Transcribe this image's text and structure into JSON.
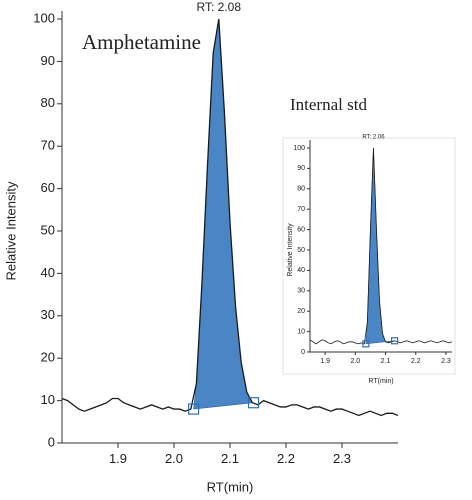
{
  "chart_data": [
    {
      "type": "line",
      "title": "Amphetamine",
      "annotation": "RT: 2.08",
      "annotation_x": 2.08,
      "x_label": "RT(min)",
      "y_label": "Relative Intensity",
      "x": [
        1.8,
        1.81,
        1.82,
        1.83,
        1.84,
        1.85,
        1.86,
        1.87,
        1.88,
        1.89,
        1.9,
        1.91,
        1.92,
        1.93,
        1.94,
        1.95,
        1.96,
        1.97,
        1.98,
        1.99,
        2.0,
        2.01,
        2.02,
        2.03,
        2.04,
        2.05,
        2.06,
        2.07,
        2.08,
        2.09,
        2.1,
        2.11,
        2.12,
        2.13,
        2.14,
        2.15,
        2.16,
        2.17,
        2.18,
        2.19,
        2.2,
        2.21,
        2.22,
        2.23,
        2.24,
        2.25,
        2.26,
        2.27,
        2.28,
        2.29,
        2.3,
        2.31,
        2.32,
        2.33,
        2.34,
        2.35,
        2.36,
        2.37,
        2.38,
        2.39,
        2.4
      ],
      "series": [
        {
          "color": "#1a1a1a",
          "fill": "#4a86c5",
          "values": [
            10.5,
            10,
            9,
            8,
            7.5,
            8,
            8.5,
            9,
            9.5,
            10.5,
            10.5,
            9.5,
            9,
            8.5,
            8,
            8.5,
            9,
            8.5,
            8,
            8.5,
            8,
            8,
            7.5,
            8,
            14,
            38,
            66,
            92,
            100,
            78,
            52,
            32,
            19,
            12,
            9.5,
            9,
            10,
            9.5,
            9,
            8.5,
            8.5,
            9,
            9,
            8.5,
            8,
            8.5,
            8.5,
            8,
            7.5,
            8,
            8,
            7.5,
            7,
            6.5,
            7,
            7.5,
            7,
            6.5,
            7,
            7,
            6.5
          ]
        }
      ],
      "peak_bounds": {
        "x": [
          2.035,
          2.142
        ],
        "y": [
          8,
          9.5
        ]
      },
      "xlim": [
        1.8,
        2.4
      ],
      "xticks": [
        1.9,
        {
          "value": 2.0,
          "label": "2.0"
        },
        2.1,
        2.2,
        2.3
      ],
      "ylim": [
        0,
        100
      ],
      "yticks": [
        0,
        10,
        20,
        30,
        40,
        50,
        60,
        70,
        80,
        90,
        100
      ]
    },
    {
      "type": "line",
      "title": "Internal std",
      "annotation": "RT: 2.06",
      "annotation_x": 2.06,
      "x_label": "RT(min)",
      "y_label": "Relative Intensity",
      "x": [
        1.85,
        1.86,
        1.87,
        1.88,
        1.89,
        1.9,
        1.91,
        1.92,
        1.93,
        1.94,
        1.95,
        1.96,
        1.97,
        1.98,
        1.99,
        2.0,
        2.01,
        2.02,
        2.03,
        2.04,
        2.05,
        2.06,
        2.07,
        2.08,
        2.09,
        2.1,
        2.11,
        2.12,
        2.13,
        2.14,
        2.15,
        2.16,
        2.17,
        2.18,
        2.19,
        2.2,
        2.21,
        2.22,
        2.23,
        2.24,
        2.25,
        2.26,
        2.27,
        2.28,
        2.29,
        2.3,
        2.31,
        2.32
      ],
      "series": [
        {
          "color": "#1a1a1a",
          "fill": "#4a86c5",
          "values": [
            6,
            5,
            4,
            5,
            6,
            5.5,
            4.5,
            4,
            5,
            5.5,
            5,
            4,
            4.5,
            5,
            5,
            4.5,
            4,
            4.5,
            4,
            15,
            60,
            100,
            60,
            25,
            9,
            5,
            4.5,
            5,
            5.5,
            5,
            4.5,
            5,
            5.5,
            5,
            4.5,
            5,
            5.5,
            5,
            4.5,
            5,
            5.5,
            5,
            4.5,
            5,
            5.5,
            5,
            4.5,
            5
          ]
        }
      ],
      "peak_bounds": {
        "x": [
          2.035,
          2.13
        ],
        "y": [
          4,
          5.5
        ]
      },
      "xlim": [
        1.85,
        2.32
      ],
      "xticks": [
        1.9,
        {
          "value": 2.0,
          "label": "2.0"
        },
        2.1,
        2.2,
        2.3
      ],
      "ylim": [
        0,
        100
      ],
      "yticks": [
        0,
        10,
        20,
        30,
        40,
        50,
        60,
        70,
        80,
        90,
        100
      ]
    }
  ]
}
